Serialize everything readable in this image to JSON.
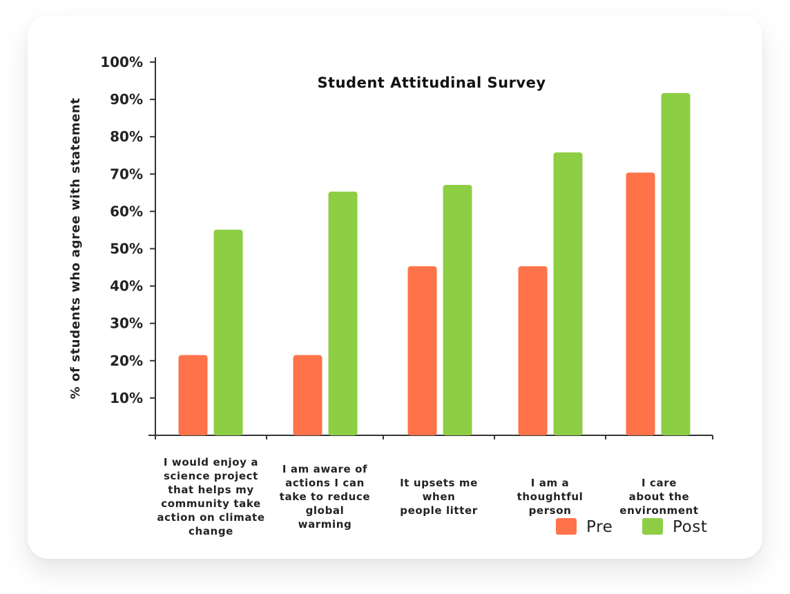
{
  "chart_data": {
    "type": "bar",
    "title": "Student Attitudinal Survey",
    "xlabel": "",
    "ylabel": "% of students who agree with statement",
    "ylim": [
      0,
      100
    ],
    "yticks": [
      "10%",
      "20%",
      "30%",
      "40%",
      "50%",
      "60%",
      "70%",
      "80%",
      "90%",
      "100%"
    ],
    "categories": [
      [
        "I would enjoy a",
        "science project",
        "that helps my",
        "community take",
        "action on climate",
        "change"
      ],
      [
        "I am aware of",
        "actions I can",
        "take to reduce",
        "global",
        "warming"
      ],
      [
        "It upsets me",
        "when",
        "people litter"
      ],
      [
        "I am a",
        "thoughtful",
        "person"
      ],
      [
        "I care",
        "about the",
        "environment"
      ]
    ],
    "series": [
      {
        "name": "Pre",
        "color": "#FF734A",
        "values": [
          21.5,
          21.5,
          45.3,
          45.3,
          70.4
        ]
      },
      {
        "name": "Post",
        "color": "#8ECE44",
        "values": [
          55.1,
          65.3,
          67.1,
          75.8,
          91.7
        ]
      }
    ],
    "grid": false,
    "legend": "bottom-right"
  }
}
